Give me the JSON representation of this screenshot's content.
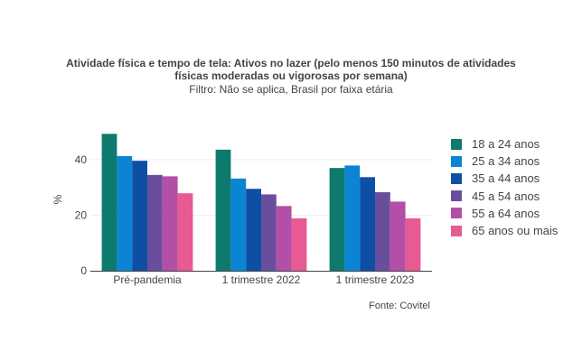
{
  "chart_data": {
    "type": "bar",
    "title_line1": "Atividade física e tempo de tela: Ativos no lazer (pelo menos 150 minutos de atividades",
    "title_line2": "físicas moderadas ou vigorosas por semana)",
    "subtitle": "Filtro: Não se aplica, Brasil por faixa etária",
    "ylabel": "%",
    "xlabel": "",
    "ylim": [
      0,
      52
    ],
    "yticks": [
      0,
      20,
      40
    ],
    "grid": true,
    "legend_position": "right",
    "categories": [
      "Pré-pandemia",
      "1 trimestre 2022",
      "1 trimestre 2023"
    ],
    "series": [
      {
        "name": "18 a 24 anos",
        "color": "#0e7a6e",
        "values": [
          49.3,
          43.6,
          37.0
        ]
      },
      {
        "name": "25 a 34 anos",
        "color": "#0b84d3",
        "values": [
          41.3,
          33.2,
          37.9
        ]
      },
      {
        "name": "35 a 44 anos",
        "color": "#0d4fa5",
        "values": [
          39.6,
          29.5,
          33.7
        ]
      },
      {
        "name": "45 a 54 anos",
        "color": "#6a4e9e",
        "values": [
          34.5,
          27.5,
          28.3
        ]
      },
      {
        "name": "55 a 64 anos",
        "color": "#b34fa6",
        "values": [
          34.0,
          23.3,
          24.9
        ]
      },
      {
        "name": "65 anos ou mais",
        "color": "#e85a93",
        "values": [
          27.9,
          18.9,
          18.9
        ]
      }
    ],
    "source": "Fonte: Covitel"
  }
}
